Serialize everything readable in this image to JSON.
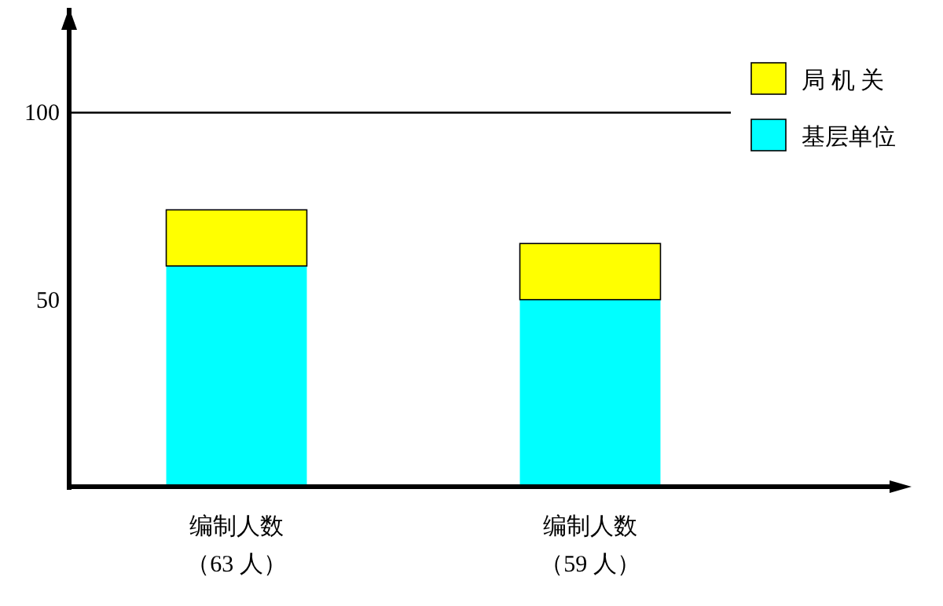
{
  "chart_data": {
    "type": "bar",
    "stacked": true,
    "categories": [
      "编制人数（63 人）",
      "编制人数（59 人）"
    ],
    "series": [
      {
        "name": "基层单位",
        "color": "#00ffff",
        "values": [
          59,
          50
        ]
      },
      {
        "name": "局 机 关",
        "color": "#ffff00",
        "values": [
          15,
          15
        ]
      }
    ],
    "ylim": [
      0,
      128
    ],
    "yticks": [
      50,
      100
    ],
    "ref_lines": [
      {
        "axis": "y",
        "value": 100,
        "color": "#000000"
      }
    ],
    "legend": "top right"
  }
}
